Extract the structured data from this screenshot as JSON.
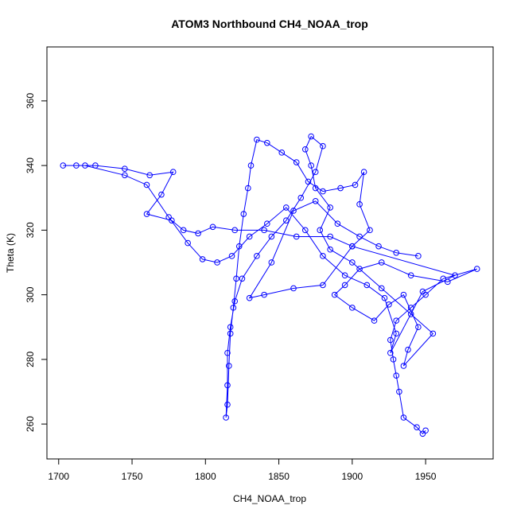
{
  "chart_data": {
    "type": "scatter",
    "title": "ATOM3 Northbound CH4_NOAA_trop",
    "x_label": "CH4_NOAA_trop",
    "y_label": "Theta (K)",
    "color": "#0000ff",
    "connect": true,
    "x": [
      1950,
      1948,
      1944,
      1935,
      1932,
      1930,
      1928,
      1926,
      1930,
      1940,
      1950,
      1962,
      1985,
      1965,
      1940,
      1920,
      1905,
      1895,
      1888,
      1900,
      1915,
      1925,
      1935,
      1945,
      1938,
      1935,
      1955,
      1940,
      1920,
      1900,
      1885,
      1878,
      1885,
      1875,
      1872,
      1868,
      1872,
      1880,
      1875,
      1865,
      1855,
      1845,
      1835,
      1825,
      1820,
      1817,
      1815,
      1815,
      1814,
      1815,
      1816,
      1817,
      1819,
      1821,
      1823,
      1826,
      1829,
      1831,
      1835,
      1842,
      1852,
      1862,
      1870,
      1880,
      1892,
      1902,
      1908,
      1905,
      1912,
      1900,
      1885,
      1862,
      1840,
      1820,
      1805,
      1795,
      1785,
      1777,
      1760,
      1770,
      1778,
      1762,
      1745,
      1725,
      1712,
      1703,
      1718,
      1745,
      1760,
      1775,
      1788,
      1798,
      1808,
      1818,
      1830,
      1842,
      1855,
      1868,
      1880,
      1895,
      1910,
      1922,
      1930,
      1926,
      1948,
      1970,
      1900,
      1880,
      1860,
      1840,
      1830,
      1845,
      1860,
      1875,
      1890,
      1905,
      1918,
      1930,
      1945
    ],
    "values": [
      258,
      257,
      259,
      262,
      270,
      275,
      280,
      286,
      292,
      296,
      300,
      305,
      308,
      304,
      306,
      310,
      308,
      303,
      300,
      296,
      292,
      297,
      300,
      290,
      283,
      278,
      288,
      294,
      302,
      310,
      314,
      320,
      327,
      333,
      340,
      345,
      349,
      346,
      338,
      330,
      323,
      318,
      312,
      305,
      298,
      290,
      282,
      272,
      262,
      266,
      278,
      288,
      296,
      305,
      315,
      325,
      333,
      340,
      348,
      347,
      344,
      341,
      335,
      332,
      333,
      334,
      338,
      328,
      320,
      315,
      318,
      318,
      320,
      320,
      321,
      319,
      320,
      323,
      325,
      331,
      338,
      337,
      339,
      340,
      340,
      340,
      340,
      337,
      334,
      324,
      316,
      311,
      310,
      312,
      318,
      322,
      327,
      320,
      312,
      306,
      303,
      299,
      288,
      282,
      301,
      306,
      315,
      303,
      302,
      300,
      299,
      310,
      326,
      329,
      322,
      318,
      315,
      313,
      312
    ],
    "xlim": [
      1692,
      1996
    ],
    "ylim": [
      249.2,
      376.7
    ],
    "xticks": [
      1700,
      1750,
      1800,
      1850,
      1900,
      1950
    ],
    "yticks": [
      260,
      280,
      300,
      320,
      340,
      360
    ]
  }
}
